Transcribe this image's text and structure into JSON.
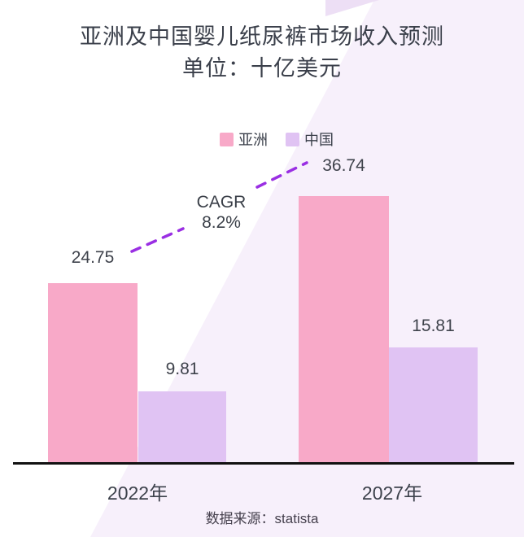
{
  "chart_data": {
    "type": "bar",
    "title": "亚洲及中国婴儿纸尿裤市场收入预测",
    "subtitle": "单位：十亿美元",
    "categories": [
      "2022年",
      "2027年"
    ],
    "series": [
      {
        "name": "亚洲",
        "color": "#F8A9C8",
        "values": [
          24.75,
          36.74
        ]
      },
      {
        "name": "中国",
        "color": "#E0C3F3",
        "values": [
          9.81,
          15.81
        ]
      }
    ],
    "annotation": {
      "line1": "CAGR",
      "line2": "8.2%",
      "line_color": "#9A2FE3"
    },
    "ylim": [
      0,
      40
    ],
    "legend_position": "top-center",
    "grid": false,
    "axis_color": "#111111"
  },
  "footer": {
    "source": "数据来源：statista"
  },
  "background": {
    "page_color": "#FFFFFF",
    "wedge_color": "#F7F0FB",
    "sliver_color": "#EDDFF5"
  }
}
